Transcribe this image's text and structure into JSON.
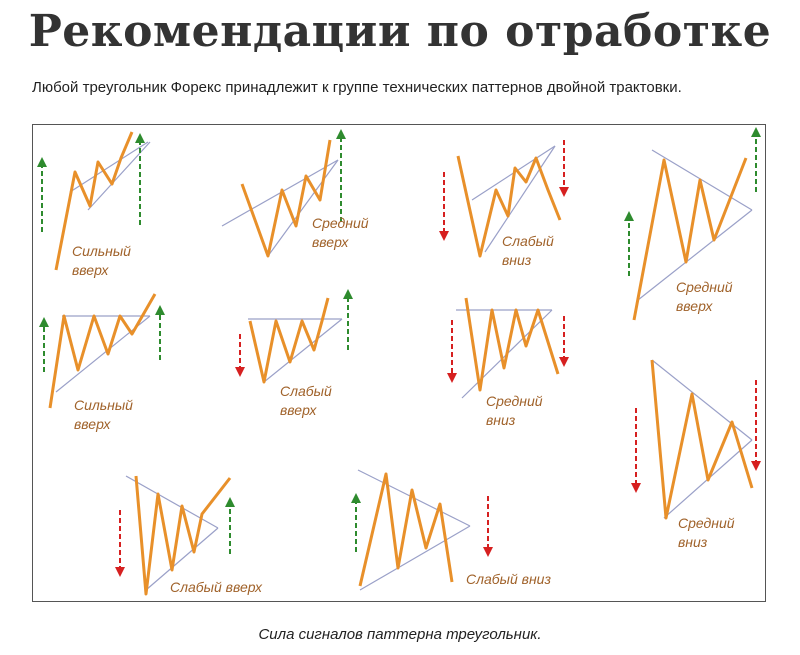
{
  "title": "Рекомендации по отработке",
  "intro": "Любой треугольник Форекс принадлежит к группе технических паттернов двойной трактовки.",
  "caption": "Сила сигналов паттерна треугольник.",
  "colors": {
    "price_line": "#e8902a",
    "trend_line": "#9aa0c8",
    "up_arrow": "#2e8b2e",
    "down_arrow": "#d62020",
    "label": "#a0622a"
  },
  "patterns": [
    {
      "label_line1": "Сильный",
      "label_line2": "вверх"
    },
    {
      "label_line1": "Средний",
      "label_line2": "вверх"
    },
    {
      "label_line1": "Слабый",
      "label_line2": "вниз"
    },
    {
      "label_line1": "Средний",
      "label_line2": "вверх"
    },
    {
      "label_line1": "Сильный",
      "label_line2": "вверх"
    },
    {
      "label_line1": "Слабый",
      "label_line2": "вверх"
    },
    {
      "label_line1": "Средний",
      "label_line2": "вниз"
    },
    {
      "label_line1": "Средний",
      "label_line2": "вниз"
    },
    {
      "label_line1": "Слабый вверх",
      "label_line2": ""
    },
    {
      "label_line1": "Слабый вниз",
      "label_line2": ""
    }
  ]
}
